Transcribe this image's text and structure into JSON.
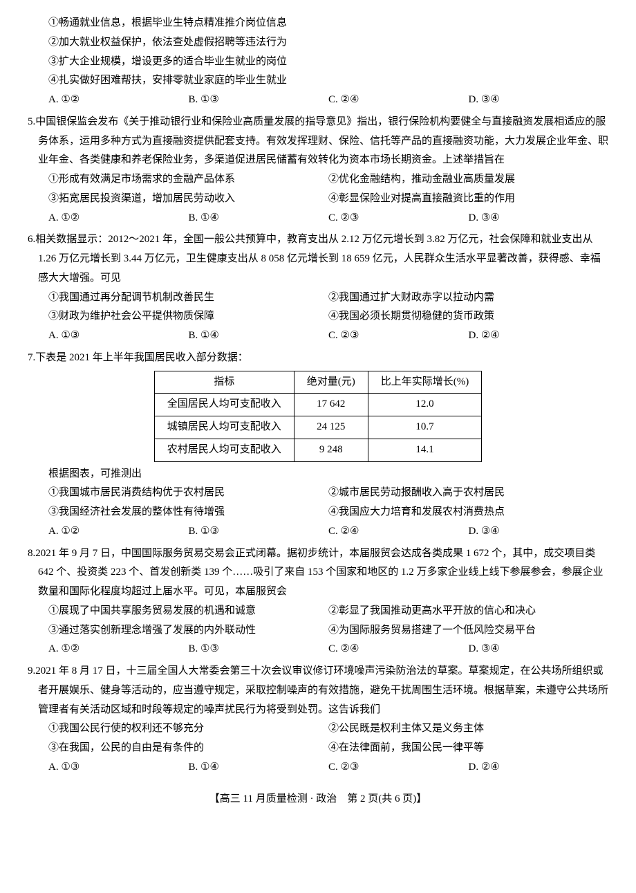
{
  "q4_partial": {
    "stmts": [
      "①畅通就业信息，根据毕业生特点精准推介岗位信息",
      "②加大就业权益保护，依法查处虚假招聘等违法行为",
      "③扩大企业规模，增设更多的适合毕业生就业的岗位",
      "④扎实做好困难帮扶，安排零就业家庭的毕业生就业"
    ],
    "choices": {
      "A": "A. ①②",
      "B": "B. ①③",
      "C": "C. ②④",
      "D": "D. ③④"
    }
  },
  "q5": {
    "num": "5.",
    "stem": "中国银保监会发布《关于推动银行业和保险业高质量发展的指导意见》指出，银行保险机构要健全与直接融资发展相适应的服务体系，运用多种方式为直接融资提供配套支持。有效发挥理财、保险、信托等产品的直接融资功能，大力发展企业年金、职业年金、各类健康和养老保险业务，多渠道促进居民储蓄有效转化为资本市场长期资金。上述举措旨在",
    "stmts_l": [
      "①形成有效满足市场需求的金融产品体系",
      "③拓宽居民投资渠道，增加居民劳动收入"
    ],
    "stmts_r": [
      "②优化金融结构，推动金融业高质量发展",
      "④彰显保险业对提高直接融资比重的作用"
    ],
    "choices": {
      "A": "A. ①②",
      "B": "B. ①④",
      "C": "C. ②③",
      "D": "D. ③④"
    }
  },
  "q6": {
    "num": "6.",
    "stem": "相关数据显示：2012～2021 年，全国一般公共预算中，教育支出从 2.12 万亿元增长到 3.82 万亿元，社会保障和就业支出从 1.26 万亿元增长到 3.44 万亿元，卫生健康支出从 8 058 亿元增长到 18 659 亿元，人民群众生活水平显著改善，获得感、幸福感大大增强。可见",
    "stmts_l": [
      "①我国通过再分配调节机制改善民生",
      "③财政为维护社会公平提供物质保障"
    ],
    "stmts_r": [
      "②我国通过扩大财政赤字以拉动内需",
      "④我国必须长期贯彻稳健的货币政策"
    ],
    "choices": {
      "A": "A. ①③",
      "B": "B. ①④",
      "C": "C. ②③",
      "D": "D. ②④"
    }
  },
  "q7": {
    "num": "7.",
    "stem": "下表是 2021 年上半年我国居民收入部分数据：",
    "table": {
      "headers": [
        "指标",
        "绝对量(元)",
        "比上年实际增长(%)"
      ],
      "rows": [
        [
          "全国居民人均可支配收入",
          "17 642",
          "12.0"
        ],
        [
          "城镇居民人均可支配收入",
          "24 125",
          "10.7"
        ],
        [
          "农村居民人均可支配收入",
          "9 248",
          "14.1"
        ]
      ]
    },
    "after": "根据图表，可推测出",
    "stmts_l": [
      "①我国城市居民消费结构优于农村居民",
      "③我国经济社会发展的整体性有待增强"
    ],
    "stmts_r": [
      "②城市居民劳动报酬收入高于农村居民",
      "④我国应大力培育和发展农村消费热点"
    ],
    "choices": {
      "A": "A. ①②",
      "B": "B. ①③",
      "C": "C. ②④",
      "D": "D. ③④"
    }
  },
  "q8": {
    "num": "8.",
    "stem": "2021 年 9 月 7 日，中国国际服务贸易交易会正式闭幕。据初步统计，本届服贸会达成各类成果 1 672 个，其中，成交项目类 642 个、投资类 223 个、首发创新类 139 个……吸引了来自 153 个国家和地区的 1.2 万多家企业线上线下参展参会，参展企业数量和国际化程度均超过上届水平。可见，本届服贸会",
    "stmts_l": [
      "①展现了中国共享服务贸易发展的机遇和诚意",
      "③通过落实创新理念增强了发展的内外联动性"
    ],
    "stmts_r": [
      "②彰显了我国推动更高水平开放的信心和决心",
      "④为国际服务贸易搭建了一个低风险交易平台"
    ],
    "choices": {
      "A": "A. ①②",
      "B": "B. ①③",
      "C": "C. ②④",
      "D": "D. ③④"
    }
  },
  "q9": {
    "num": "9.",
    "stem": "2021 年 8 月 17 日，十三届全国人大常委会第三十次会议审议修订环境噪声污染防治法的草案。草案规定，在公共场所组织或者开展娱乐、健身等活动的，应当遵守规定，采取控制噪声的有效措施，避免干扰周围生活环境。根据草案，未遵守公共场所管理者有关活动区域和时段等规定的噪声扰民行为将受到处罚。这告诉我们",
    "stmts_l": [
      "①我国公民行使的权利还不够充分",
      "③在我国，公民的自由是有条件的"
    ],
    "stmts_r": [
      "②公民既是权利主体又是义务主体",
      "④在法律面前，我国公民一律平等"
    ],
    "choices": {
      "A": "A. ①③",
      "B": "B. ①④",
      "C": "C. ②③",
      "D": "D. ②④"
    }
  },
  "footer": "【高三 11 月质量检测 · 政治　第 2 页(共 6 页)】"
}
